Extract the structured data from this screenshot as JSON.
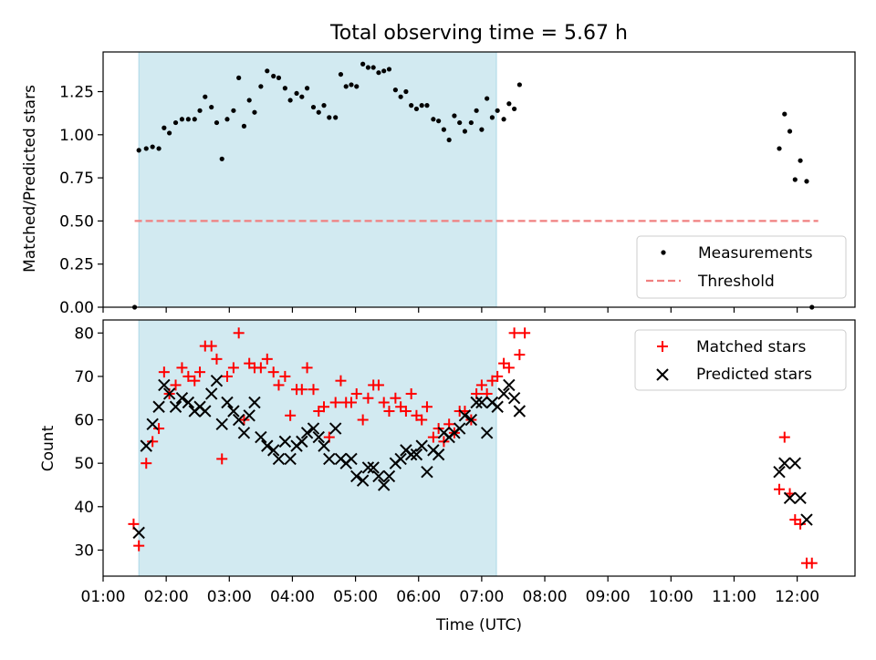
{
  "chart_data": [
    {
      "type": "scatter",
      "title": "Total observing time = 5.67 h",
      "ylabel": "Matched/Predicted stars",
      "xlabel": "",
      "xlim": [
        "01:00",
        "12:55"
      ],
      "ylim": [
        0,
        1.48
      ],
      "yticks": [
        "0.00",
        "0.25",
        "0.50",
        "0.75",
        "1.00",
        "1.25"
      ],
      "grid": false,
      "legend_position": "lower-right",
      "shaded_region": {
        "start": "01:34",
        "end": "07:14",
        "color": "#add8e6"
      },
      "threshold": {
        "name": "Threshold",
        "value": 0.5,
        "x_start": "01:30",
        "x_end": "12:20",
        "color": "#f08080"
      },
      "series": [
        {
          "name": "Measurements",
          "color": "#000000",
          "points": [
            [
              "01:30",
              0.0
            ],
            [
              "01:34",
              0.91
            ],
            [
              "01:41",
              0.92
            ],
            [
              "01:47",
              0.93
            ],
            [
              "01:53",
              0.92
            ],
            [
              "01:58",
              1.04
            ],
            [
              "02:03",
              1.01
            ],
            [
              "02:09",
              1.07
            ],
            [
              "02:15",
              1.09
            ],
            [
              "02:21",
              1.09
            ],
            [
              "02:27",
              1.09
            ],
            [
              "02:32",
              1.14
            ],
            [
              "02:37",
              1.22
            ],
            [
              "02:43",
              1.16
            ],
            [
              "02:48",
              1.07
            ],
            [
              "02:53",
              0.86
            ],
            [
              "02:58",
              1.09
            ],
            [
              "03:04",
              1.14
            ],
            [
              "03:09",
              1.33
            ],
            [
              "03:14",
              1.05
            ],
            [
              "03:19",
              1.2
            ],
            [
              "03:24",
              1.13
            ],
            [
              "03:30",
              1.28
            ],
            [
              "03:36",
              1.37
            ],
            [
              "03:42",
              1.34
            ],
            [
              "03:47",
              1.33
            ],
            [
              "03:53",
              1.27
            ],
            [
              "03:58",
              1.2
            ],
            [
              "04:04",
              1.24
            ],
            [
              "04:09",
              1.22
            ],
            [
              "04:14",
              1.27
            ],
            [
              "04:20",
              1.16
            ],
            [
              "04:25",
              1.13
            ],
            [
              "04:30",
              1.17
            ],
            [
              "04:35",
              1.1
            ],
            [
              "04:41",
              1.1
            ],
            [
              "04:46",
              1.35
            ],
            [
              "04:51",
              1.28
            ],
            [
              "04:56",
              1.29
            ],
            [
              "05:01",
              1.28
            ],
            [
              "05:07",
              1.41
            ],
            [
              "05:12",
              1.39
            ],
            [
              "05:17",
              1.39
            ],
            [
              "05:22",
              1.36
            ],
            [
              "05:27",
              1.37
            ],
            [
              "05:32",
              1.38
            ],
            [
              "05:38",
              1.26
            ],
            [
              "05:43",
              1.22
            ],
            [
              "05:48",
              1.25
            ],
            [
              "05:53",
              1.17
            ],
            [
              "05:58",
              1.15
            ],
            [
              "06:03",
              1.17
            ],
            [
              "06:08",
              1.17
            ],
            [
              "06:14",
              1.09
            ],
            [
              "06:19",
              1.08
            ],
            [
              "06:24",
              1.03
            ],
            [
              "06:29",
              0.97
            ],
            [
              "06:34",
              1.11
            ],
            [
              "06:39",
              1.07
            ],
            [
              "06:44",
              1.02
            ],
            [
              "06:50",
              1.07
            ],
            [
              "06:55",
              1.14
            ],
            [
              "07:00",
              1.03
            ],
            [
              "07:05",
              1.21
            ],
            [
              "07:10",
              1.1
            ],
            [
              "07:15",
              1.14
            ],
            [
              "07:21",
              1.09
            ],
            [
              "07:26",
              1.18
            ],
            [
              "07:31",
              1.15
            ],
            [
              "07:36",
              1.29
            ],
            [
              "11:43",
              0.92
            ],
            [
              "11:48",
              1.12
            ],
            [
              "11:53",
              1.02
            ],
            [
              "11:58",
              0.74
            ],
            [
              "12:03",
              0.85
            ],
            [
              "12:09",
              0.73
            ],
            [
              "12:14",
              0.0
            ]
          ]
        }
      ]
    },
    {
      "type": "scatter",
      "title": "",
      "xlabel": "Time (UTC)",
      "ylabel": "Count",
      "xlim": [
        "01:00",
        "12:55"
      ],
      "ylim": [
        24,
        83
      ],
      "yticks": [
        30,
        40,
        50,
        60,
        70,
        80
      ],
      "xticks": [
        "01:00",
        "02:00",
        "03:00",
        "04:00",
        "05:00",
        "06:00",
        "07:00",
        "08:00",
        "09:00",
        "10:00",
        "11:00",
        "12:00"
      ],
      "grid": false,
      "legend_position": "upper-right",
      "shaded_region": {
        "start": "01:34",
        "end": "07:14",
        "color": "#add8e6"
      },
      "series": [
        {
          "name": "Matched stars",
          "marker": "plus",
          "color": "#ff0000",
          "points": [
            [
              "01:29",
              36
            ],
            [
              "01:34",
              31
            ],
            [
              "01:41",
              50
            ],
            [
              "01:47",
              55
            ],
            [
              "01:53",
              58
            ],
            [
              "01:58",
              71
            ],
            [
              "02:03",
              66
            ],
            [
              "02:09",
              68
            ],
            [
              "02:15",
              72
            ],
            [
              "02:21",
              70
            ],
            [
              "02:27",
              69
            ],
            [
              "02:32",
              71
            ],
            [
              "02:37",
              77
            ],
            [
              "02:43",
              77
            ],
            [
              "02:48",
              74
            ],
            [
              "02:53",
              51
            ],
            [
              "02:58",
              70
            ],
            [
              "03:04",
              72
            ],
            [
              "03:09",
              80
            ],
            [
              "03:14",
              60
            ],
            [
              "03:19",
              73
            ],
            [
              "03:24",
              72
            ],
            [
              "03:30",
              72
            ],
            [
              "03:36",
              74
            ],
            [
              "03:42",
              71
            ],
            [
              "03:47",
              68
            ],
            [
              "03:53",
              70
            ],
            [
              "03:58",
              61
            ],
            [
              "04:04",
              67
            ],
            [
              "04:09",
              67
            ],
            [
              "04:14",
              72
            ],
            [
              "04:20",
              67
            ],
            [
              "04:25",
              62
            ],
            [
              "04:30",
              63
            ],
            [
              "04:35",
              56
            ],
            [
              "04:41",
              64
            ],
            [
              "04:46",
              69
            ],
            [
              "04:51",
              64
            ],
            [
              "04:56",
              64
            ],
            [
              "05:01",
              66
            ],
            [
              "05:07",
              60
            ],
            [
              "05:12",
              65
            ],
            [
              "05:17",
              68
            ],
            [
              "05:22",
              68
            ],
            [
              "05:27",
              64
            ],
            [
              "05:32",
              62
            ],
            [
              "05:38",
              65
            ],
            [
              "05:43",
              63
            ],
            [
              "05:48",
              62
            ],
            [
              "05:53",
              66
            ],
            [
              "05:58",
              61
            ],
            [
              "06:03",
              60
            ],
            [
              "06:08",
              63
            ],
            [
              "06:14",
              56
            ],
            [
              "06:19",
              58
            ],
            [
              "06:24",
              55
            ],
            [
              "06:29",
              59
            ],
            [
              "06:34",
              57
            ],
            [
              "06:39",
              62
            ],
            [
              "06:44",
              62
            ],
            [
              "06:50",
              60
            ],
            [
              "06:55",
              66
            ],
            [
              "07:00",
              68
            ],
            [
              "07:05",
              66
            ],
            [
              "07:10",
              69
            ],
            [
              "07:15",
              70
            ],
            [
              "07:21",
              73
            ],
            [
              "07:26",
              72
            ],
            [
              "07:31",
              80
            ],
            [
              "07:36",
              75
            ],
            [
              "07:41",
              80
            ],
            [
              "11:43",
              44
            ],
            [
              "11:48",
              56
            ],
            [
              "11:53",
              43
            ],
            [
              "11:58",
              37
            ],
            [
              "12:03",
              36
            ],
            [
              "12:09",
              27
            ],
            [
              "12:14",
              27
            ]
          ]
        },
        {
          "name": "Predicted stars",
          "marker": "x",
          "color": "#000000",
          "points": [
            [
              "01:34",
              34
            ],
            [
              "01:41",
              54
            ],
            [
              "01:47",
              59
            ],
            [
              "01:53",
              63
            ],
            [
              "01:58",
              68
            ],
            [
              "02:03",
              66
            ],
            [
              "02:09",
              63
            ],
            [
              "02:15",
              65
            ],
            [
              "02:21",
              64
            ],
            [
              "02:27",
              62
            ],
            [
              "02:32",
              63
            ],
            [
              "02:37",
              62
            ],
            [
              "02:43",
              66
            ],
            [
              "02:48",
              69
            ],
            [
              "02:53",
              59
            ],
            [
              "02:58",
              64
            ],
            [
              "03:04",
              62
            ],
            [
              "03:09",
              60
            ],
            [
              "03:14",
              57
            ],
            [
              "03:19",
              61
            ],
            [
              "03:24",
              64
            ],
            [
              "03:30",
              56
            ],
            [
              "03:36",
              54
            ],
            [
              "03:42",
              53
            ],
            [
              "03:47",
              51
            ],
            [
              "03:53",
              55
            ],
            [
              "03:58",
              51
            ],
            [
              "04:04",
              54
            ],
            [
              "04:09",
              55
            ],
            [
              "04:14",
              57
            ],
            [
              "04:20",
              58
            ],
            [
              "04:25",
              56
            ],
            [
              "04:30",
              54
            ],
            [
              "04:35",
              51
            ],
            [
              "04:41",
              58
            ],
            [
              "04:46",
              51
            ],
            [
              "04:51",
              50
            ],
            [
              "04:56",
              51
            ],
            [
              "05:01",
              47
            ],
            [
              "05:07",
              46
            ],
            [
              "05:12",
              49
            ],
            [
              "05:17",
              49
            ],
            [
              "05:22",
              47
            ],
            [
              "05:27",
              45
            ],
            [
              "05:32",
              47
            ],
            [
              "05:38",
              50
            ],
            [
              "05:43",
              51
            ],
            [
              "05:48",
              53
            ],
            [
              "05:53",
              52
            ],
            [
              "05:58",
              52
            ],
            [
              "06:03",
              54
            ],
            [
              "06:08",
              48
            ],
            [
              "06:14",
              53
            ],
            [
              "06:19",
              52
            ],
            [
              "06:24",
              57
            ],
            [
              "06:29",
              56
            ],
            [
              "06:34",
              57
            ],
            [
              "06:39",
              58
            ],
            [
              "06:44",
              61
            ],
            [
              "06:50",
              60
            ],
            [
              "06:55",
              64
            ],
            [
              "07:00",
              64
            ],
            [
              "07:05",
              57
            ],
            [
              "07:10",
              64
            ],
            [
              "07:15",
              63
            ],
            [
              "07:21",
              66
            ],
            [
              "07:26",
              68
            ],
            [
              "07:31",
              65
            ],
            [
              "07:36",
              62
            ],
            [
              "11:43",
              48
            ],
            [
              "11:48",
              50
            ],
            [
              "11:53",
              42
            ],
            [
              "11:58",
              50
            ],
            [
              "12:03",
              42
            ],
            [
              "12:09",
              37
            ]
          ]
        }
      ]
    }
  ]
}
